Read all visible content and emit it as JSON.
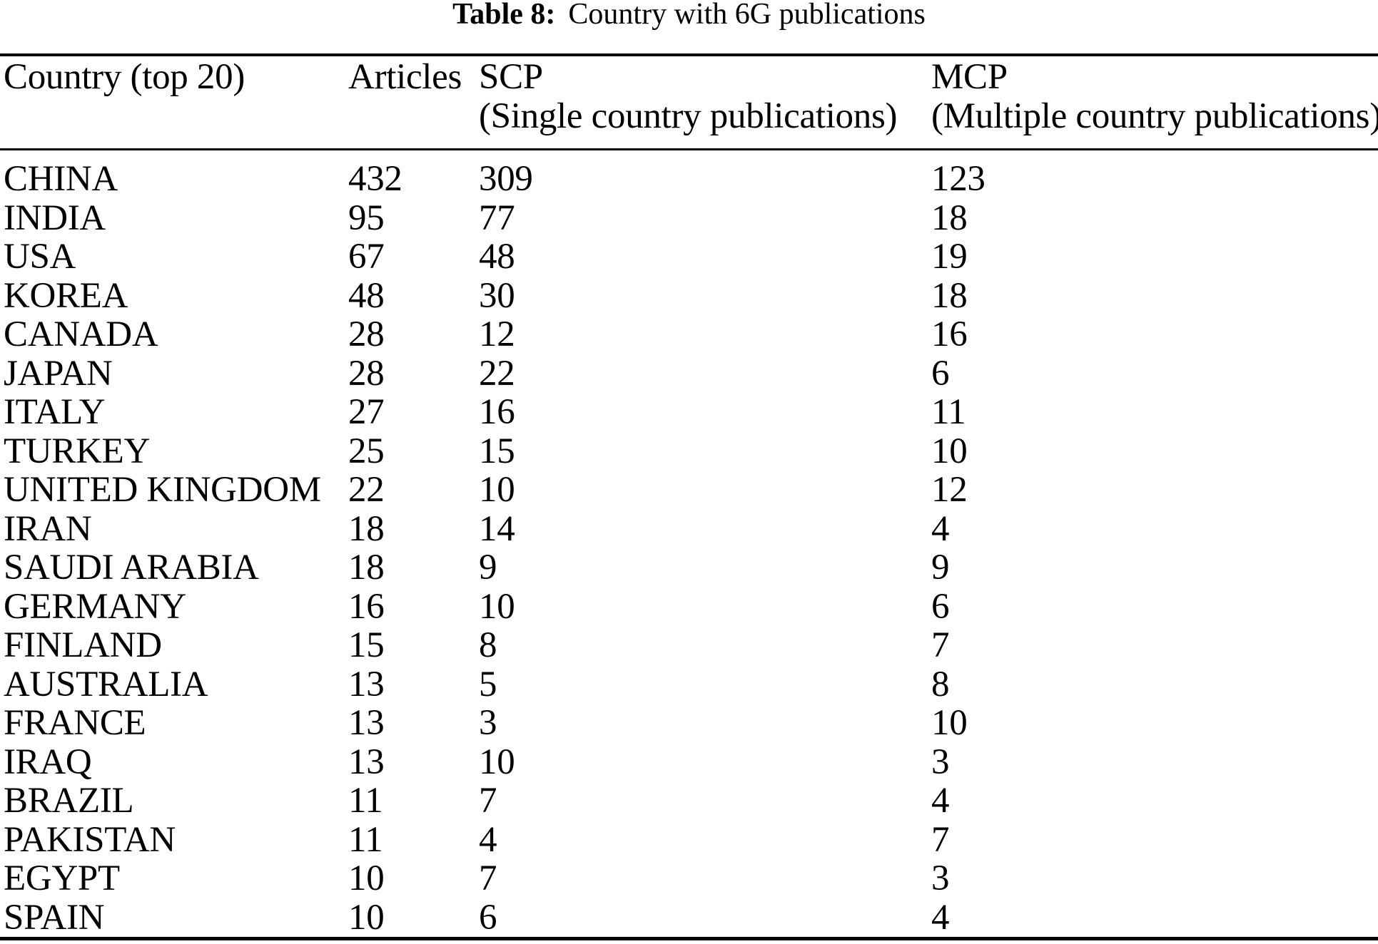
{
  "caption": {
    "label": "Table 8:",
    "text": "Country with 6G publications"
  },
  "table": {
    "columns": [
      {
        "header": "Country (top 20)",
        "subheader": ""
      },
      {
        "header": "Articles",
        "subheader": ""
      },
      {
        "header": "SCP",
        "subheader": "(Single country publications)"
      },
      {
        "header": "MCP",
        "subheader": "(Multiple country publications)"
      }
    ],
    "rows": [
      {
        "country": "CHINA",
        "articles": "432",
        "scp": "309",
        "mcp": "123"
      },
      {
        "country": "INDIA",
        "articles": "95",
        "scp": "77",
        "mcp": "18"
      },
      {
        "country": "USA",
        "articles": "67",
        "scp": "48",
        "mcp": "19"
      },
      {
        "country": "KOREA",
        "articles": "48",
        "scp": "30",
        "mcp": "18"
      },
      {
        "country": "CANADA",
        "articles": "28",
        "scp": "12",
        "mcp": "16"
      },
      {
        "country": "JAPAN",
        "articles": "28",
        "scp": "22",
        "mcp": "6"
      },
      {
        "country": "ITALY",
        "articles": "27",
        "scp": "16",
        "mcp": "11"
      },
      {
        "country": "TURKEY",
        "articles": "25",
        "scp": "15",
        "mcp": "10"
      },
      {
        "country": "UNITED KINGDOM",
        "articles": "22",
        "scp": "10",
        "mcp": "12"
      },
      {
        "country": "IRAN",
        "articles": "18",
        "scp": "14",
        "mcp": "4"
      },
      {
        "country": "SAUDI ARABIA",
        "articles": "18",
        "scp": "9",
        "mcp": "9"
      },
      {
        "country": "GERMANY",
        "articles": "16",
        "scp": "10",
        "mcp": "6"
      },
      {
        "country": "FINLAND",
        "articles": "15",
        "scp": "8",
        "mcp": "7"
      },
      {
        "country": "AUSTRALIA",
        "articles": "13",
        "scp": "5",
        "mcp": "8"
      },
      {
        "country": "FRANCE",
        "articles": "13",
        "scp": "3",
        "mcp": "10"
      },
      {
        "country": "IRAQ",
        "articles": "13",
        "scp": "10",
        "mcp": "3"
      },
      {
        "country": "BRAZIL",
        "articles": "11",
        "scp": "7",
        "mcp": "4"
      },
      {
        "country": "PAKISTAN",
        "articles": "11",
        "scp": "4",
        "mcp": "7"
      },
      {
        "country": "EGYPT",
        "articles": "10",
        "scp": "7",
        "mcp": "3"
      },
      {
        "country": "SPAIN",
        "articles": "10",
        "scp": "6",
        "mcp": "4"
      }
    ]
  }
}
